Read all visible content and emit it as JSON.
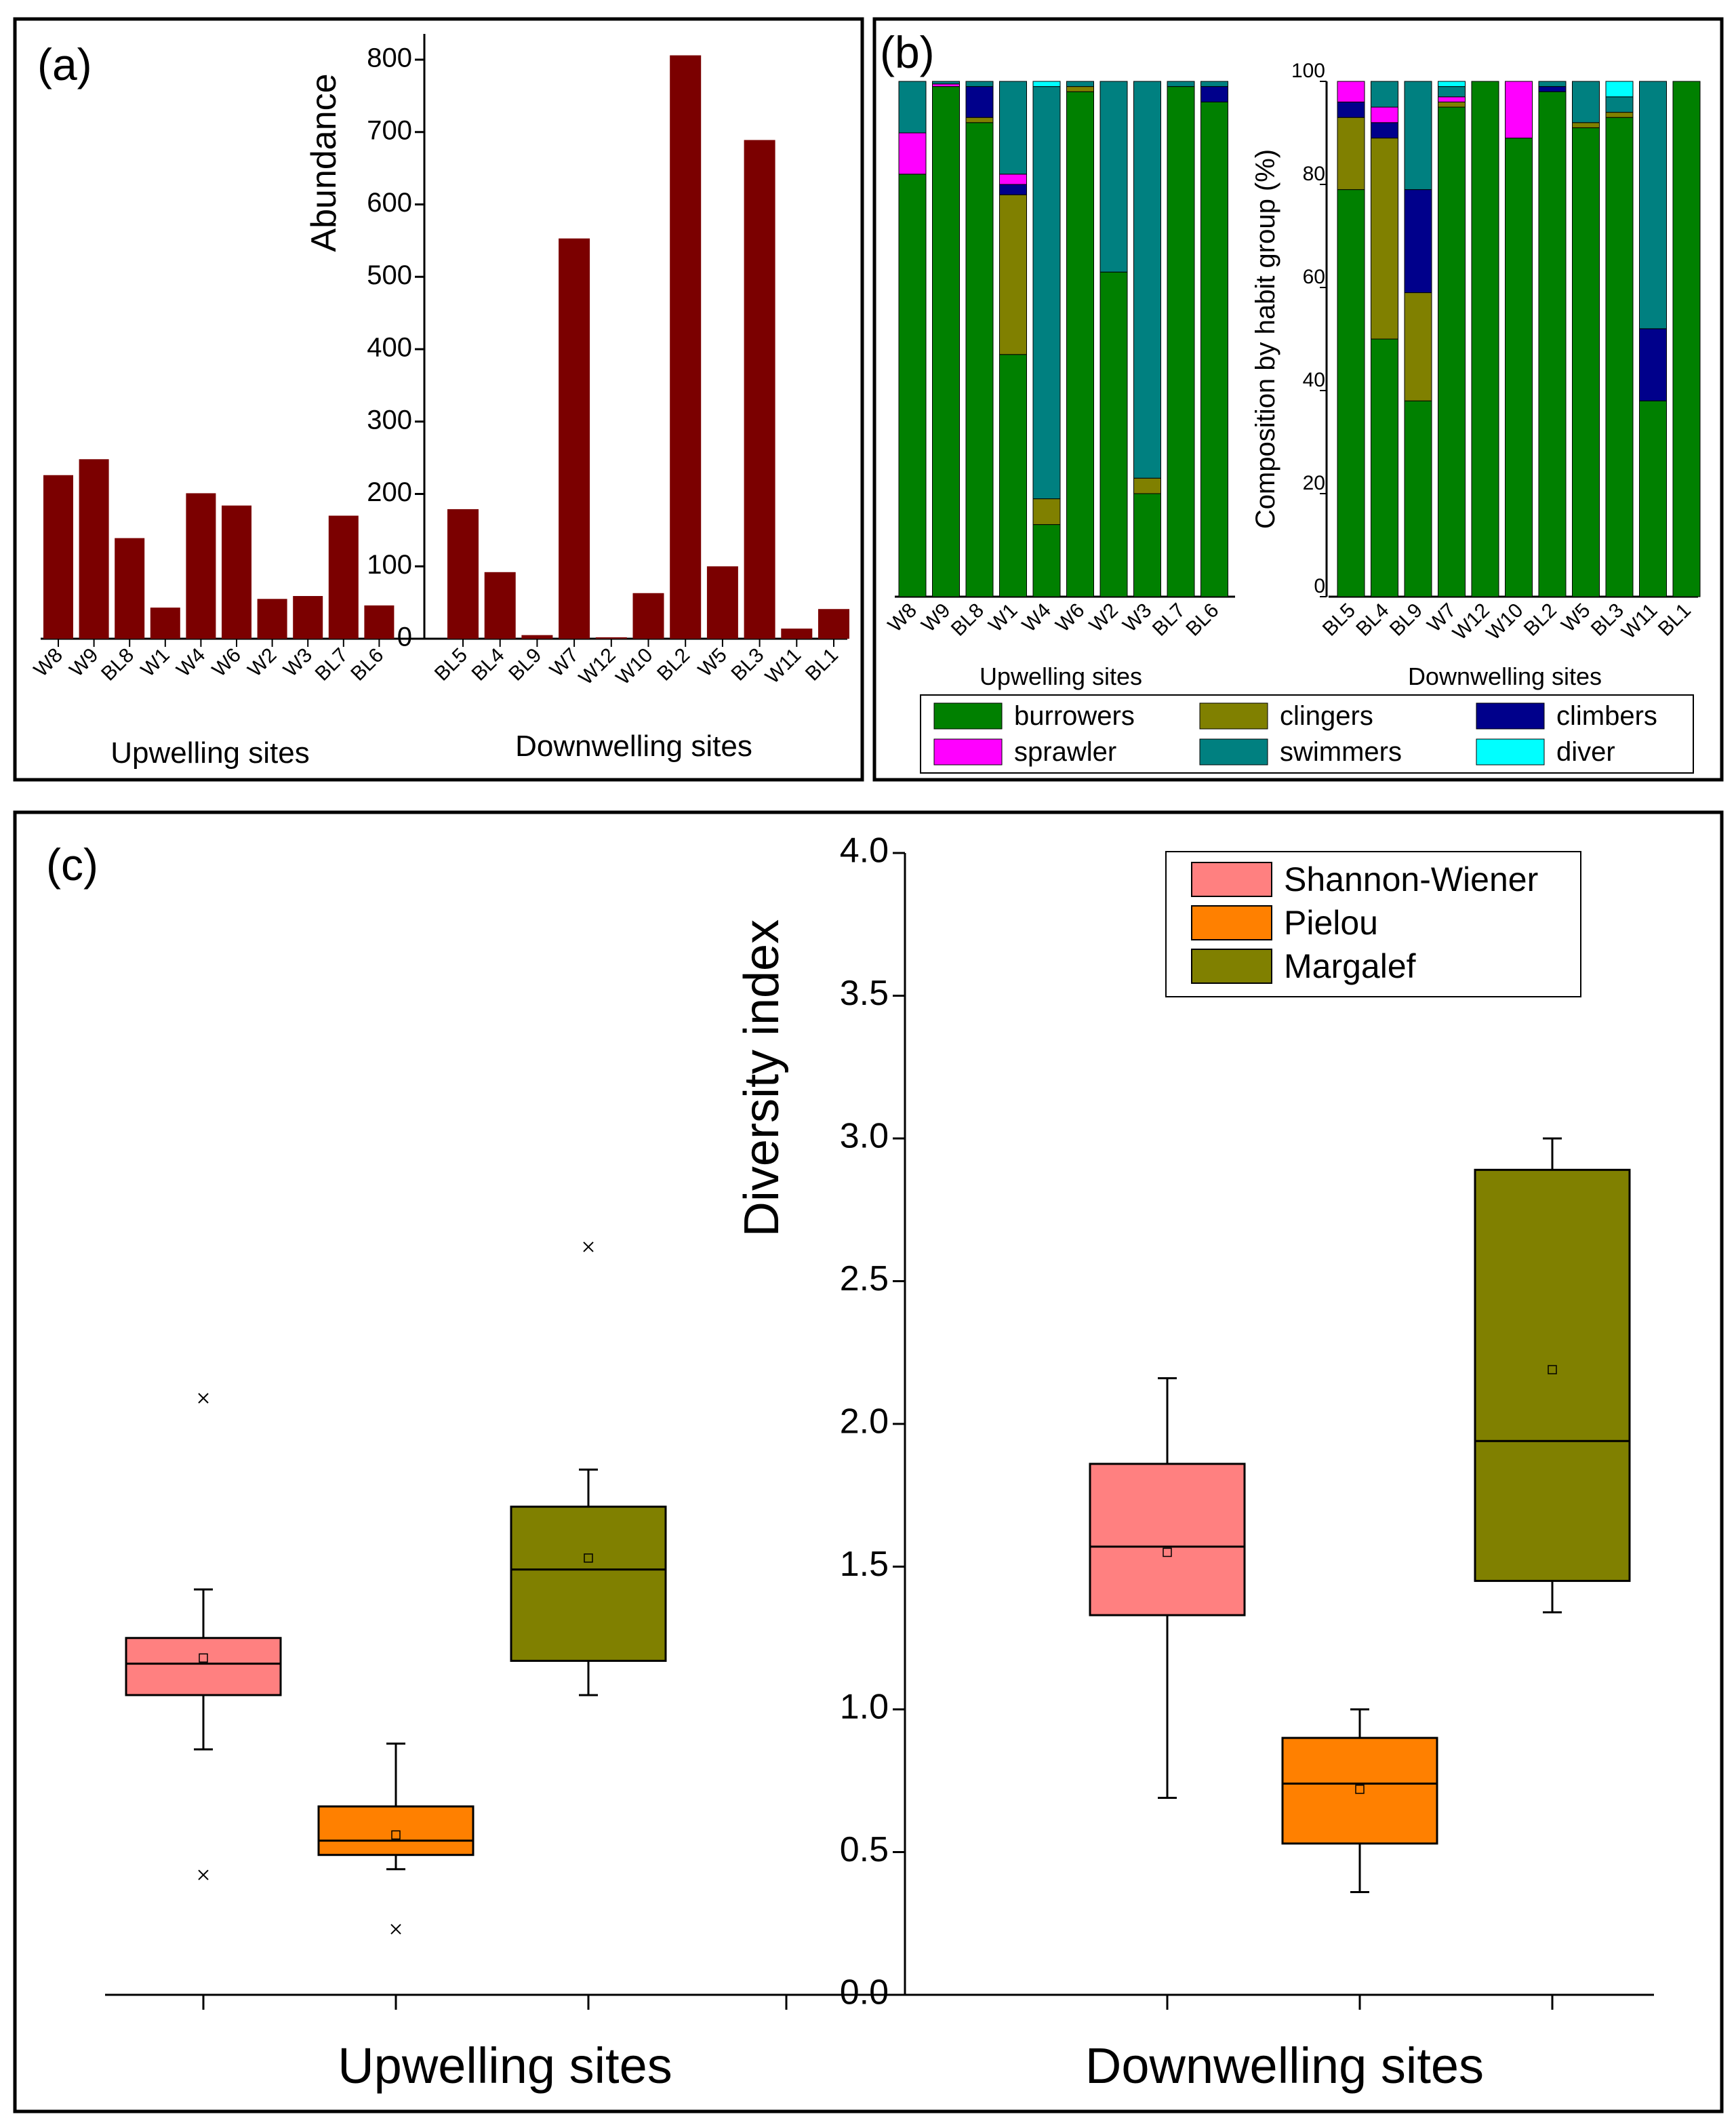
{
  "chart_data": [
    {
      "panel": "(a)",
      "type": "bar",
      "ylabel": "Abundance",
      "ylim": [
        0,
        800
      ],
      "yticks": [
        "0",
        "100",
        "200",
        "300",
        "400",
        "500",
        "600",
        "700",
        "800"
      ],
      "bar_color": "#7B0000",
      "groups": [
        {
          "label": "Upwelling sites",
          "categories": [
            "W8",
            "W9",
            "BL8",
            "W1",
            "W4",
            "W6",
            "W2",
            "W3",
            "BL7",
            "BL6"
          ],
          "values": [
            226,
            248,
            139,
            43,
            201,
            184,
            55,
            59,
            170,
            46
          ]
        },
        {
          "label": "Downwelling sites",
          "categories": [
            "BL5",
            "BL4",
            "BL9",
            "W7",
            "W12",
            "W10",
            "BL2",
            "W5",
            "BL3",
            "W11",
            "BL1"
          ],
          "values": [
            179,
            92,
            5,
            553,
            2,
            63,
            806,
            100,
            689,
            14,
            41
          ]
        }
      ]
    },
    {
      "panel": "(b)",
      "type": "bar",
      "stacked": true,
      "ylabel": "Composition by habit group (%)",
      "ylim": [
        0,
        100
      ],
      "yticks": [
        "0",
        "20",
        "40",
        "60",
        "80",
        "100"
      ],
      "legend": [
        "burrowers",
        "clingers",
        "climbers",
        "sprawler",
        "swimmers",
        "diver"
      ],
      "colors": {
        "burrowers": "#008000",
        "clingers": "#808000",
        "climbers": "#00008B",
        "sprawler": "#FF00FF",
        "swimmers": "#008080",
        "diver": "#00FFFF"
      },
      "groups": [
        {
          "label": "Upwelling sites",
          "categories": [
            "W8",
            "W9",
            "BL8",
            "W1",
            "W4",
            "W6",
            "W2",
            "W3",
            "BL7",
            "BL6"
          ],
          "series": [
            {
              "name": "burrowers",
              "values": [
                82,
                99,
                92,
                47,
                14,
                98,
                63,
                20,
                99,
                96
              ]
            },
            {
              "name": "clingers",
              "values": [
                0,
                0,
                1,
                31,
                5,
                1,
                0,
                3,
                0,
                0
              ]
            },
            {
              "name": "climbers",
              "values": [
                0,
                0,
                6,
                2,
                0,
                0,
                0,
                0,
                0,
                3
              ]
            },
            {
              "name": "sprawler",
              "values": [
                8,
                0.5,
                0,
                2,
                0,
                0,
                0,
                0,
                0,
                0
              ]
            },
            {
              "name": "swimmers",
              "values": [
                10,
                0.5,
                1,
                18,
                80,
                1,
                37,
                77,
                1,
                1
              ]
            },
            {
              "name": "diver",
              "values": [
                0,
                0,
                0,
                0,
                1,
                0,
                0,
                0,
                0,
                0
              ]
            }
          ]
        },
        {
          "label": "Downwelling sites",
          "categories": [
            "BL5",
            "BL4",
            "BL9",
            "W7",
            "W12",
            "W10",
            "BL2",
            "W5",
            "BL3",
            "W11",
            "BL1"
          ],
          "series": [
            {
              "name": "burrowers",
              "values": [
                79,
                50,
                38,
                95,
                100,
                89,
                98,
                91,
                93,
                38,
                100
              ]
            },
            {
              "name": "clingers",
              "values": [
                14,
                39,
                21,
                1,
                0,
                0,
                0,
                1,
                1,
                0,
                0
              ]
            },
            {
              "name": "climbers",
              "values": [
                3,
                3,
                20,
                0,
                0,
                0,
                1,
                0,
                0,
                14,
                0
              ]
            },
            {
              "name": "sprawler",
              "values": [
                4,
                3,
                0,
                1,
                0,
                11,
                0,
                0,
                0,
                0,
                0
              ]
            },
            {
              "name": "swimmers",
              "values": [
                0,
                5,
                21,
                2,
                0,
                0,
                1,
                8,
                3,
                48,
                0
              ]
            },
            {
              "name": "diver",
              "values": [
                0,
                0,
                0,
                1,
                0,
                0,
                0,
                0,
                3,
                0,
                0
              ]
            }
          ]
        }
      ]
    },
    {
      "panel": "(c)",
      "type": "box",
      "ylabel": "Diversity index",
      "ylim": [
        0,
        4
      ],
      "yticks": [
        "0.0",
        "0.5",
        "1.0",
        "1.5",
        "2.0",
        "2.5",
        "3.0",
        "3.5",
        "4.0"
      ],
      "legend": [
        "Shannon-Wiener",
        "Pielou",
        "Margalef"
      ],
      "colors": {
        "Shannon-Wiener": "#FF8080",
        "Pielou": "#FF8000",
        "Margalef": "#808000"
      },
      "groups": [
        {
          "label": "Upwelling sites",
          "boxes": [
            {
              "name": "Shannon-Wiener",
              "q1": 1.05,
              "median": 1.16,
              "q3": 1.25,
              "whisker_low": 0.86,
              "whisker_high": 1.42,
              "mean": 1.18,
              "outliers": [
                0.42,
                2.09
              ]
            },
            {
              "name": "Pielou",
              "q1": 0.49,
              "median": 0.54,
              "q3": 0.66,
              "whisker_low": 0.44,
              "whisker_high": 0.88,
              "mean": 0.56,
              "outliers": [
                0.23
              ]
            },
            {
              "name": "Margalef",
              "q1": 1.17,
              "median": 1.49,
              "q3": 1.71,
              "whisker_low": 1.05,
              "whisker_high": 1.84,
              "mean": 1.53,
              "outliers": [
                2.62
              ]
            }
          ]
        },
        {
          "label": "Downwelling sites",
          "boxes": [
            {
              "name": "Shannon-Wiener",
              "q1": 1.33,
              "median": 1.57,
              "q3": 1.86,
              "whisker_low": 0.69,
              "whisker_high": 2.16,
              "mean": 1.55,
              "outliers": []
            },
            {
              "name": "Pielou",
              "q1": 0.53,
              "median": 0.74,
              "q3": 0.9,
              "whisker_low": 0.36,
              "whisker_high": 1.0,
              "mean": 0.72,
              "outliers": []
            },
            {
              "name": "Margalef",
              "q1": 1.45,
              "median": 1.94,
              "q3": 2.89,
              "whisker_low": 1.34,
              "whisker_high": 3.0,
              "mean": 2.19,
              "outliers": []
            }
          ]
        }
      ]
    }
  ]
}
